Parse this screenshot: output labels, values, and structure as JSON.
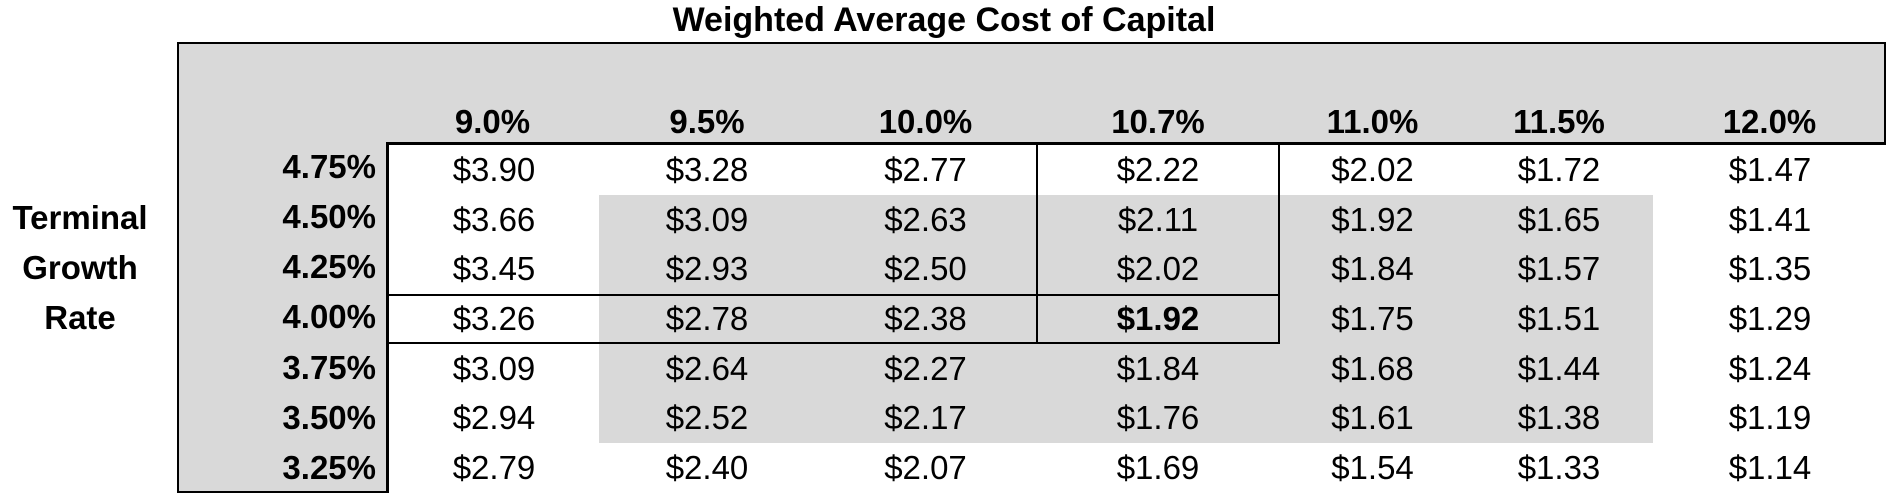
{
  "title": "Weighted Average Cost of Capital",
  "row_axis_label_lines": [
    "Terminal",
    "Growth",
    "Rate"
  ],
  "colors": {
    "block_bg": "#d9d9d9",
    "shade_bg": "#d9d9d9",
    "cell_bg": "#ffffff",
    "border": "#000000",
    "text": "#000000"
  },
  "chart_data": {
    "type": "table",
    "title": "Weighted Average Cost of Capital",
    "row_axis_label": "Terminal Growth Rate",
    "col_headers": [
      "9.0%",
      "9.5%",
      "10.0%",
      "10.7%",
      "11.0%",
      "11.5%",
      "12.0%"
    ],
    "row_headers": [
      "4.75%",
      "4.50%",
      "4.25%",
      "4.00%",
      "3.75%",
      "3.50%",
      "3.25%"
    ],
    "values": [
      [
        "$3.90",
        "$3.28",
        "$2.77",
        "$2.22",
        "$2.02",
        "$1.72",
        "$1.47"
      ],
      [
        "$3.66",
        "$3.09",
        "$2.63",
        "$2.11",
        "$1.92",
        "$1.65",
        "$1.41"
      ],
      [
        "$3.45",
        "$2.93",
        "$2.50",
        "$2.02",
        "$1.84",
        "$1.57",
        "$1.35"
      ],
      [
        "$3.26",
        "$2.78",
        "$2.38",
        "$1.92",
        "$1.75",
        "$1.51",
        "$1.29"
      ],
      [
        "$3.09",
        "$2.64",
        "$2.27",
        "$1.84",
        "$1.68",
        "$1.44",
        "$1.24"
      ],
      [
        "$2.94",
        "$2.52",
        "$2.17",
        "$1.76",
        "$1.61",
        "$1.38",
        "$1.19"
      ],
      [
        "$2.79",
        "$2.40",
        "$2.07",
        "$1.69",
        "$1.54",
        "$1.33",
        "$1.14"
      ]
    ],
    "highlight_cell": {
      "row_index": 3,
      "col_index": 3,
      "row_header": "4.00%",
      "col_header": "10.7%",
      "value": "$1.92"
    },
    "shaded_block": {
      "row_start": 1,
      "row_end": 5,
      "col_start": 1,
      "col_end": 5,
      "shaded_rows": [
        "4.50%",
        "4.25%",
        "4.00%",
        "3.75%",
        "3.50%"
      ],
      "shaded_cols": [
        "9.5%",
        "10.0%",
        "10.7%",
        "11.0%",
        "11.5%"
      ]
    }
  }
}
